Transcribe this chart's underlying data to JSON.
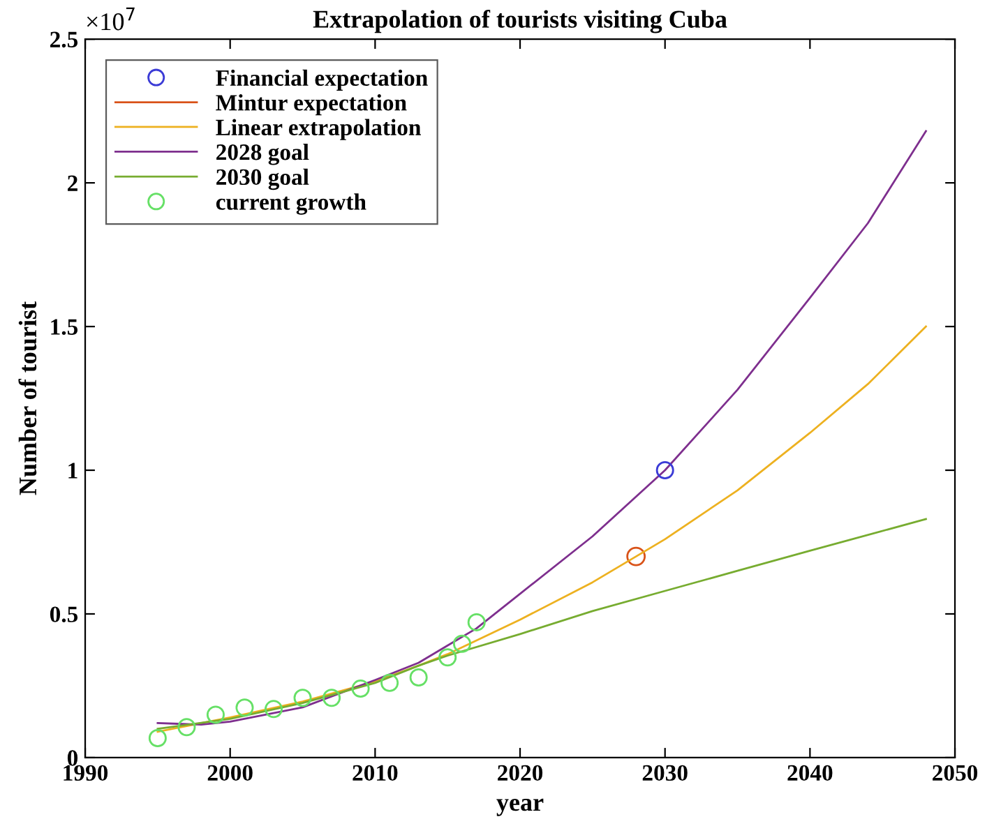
{
  "chart_data": {
    "type": "line",
    "title": "Extrapolation of tourists visiting Cuba",
    "xlabel": "year",
    "ylabel": "Number of tourist",
    "annotations": [
      "×10$^{7}$"
    ],
    "xlim": [
      1990,
      2050
    ],
    "xticks": [
      1990,
      2000,
      2010,
      2020,
      2030,
      2040,
      2050
    ],
    "ylim": [
      0,
      2.5
    ],
    "yticks": [
      0,
      0.5,
      1,
      1.5,
      2,
      2.5
    ],
    "grid": false,
    "legend": "top left",
    "line_style": "solid",
    "series": [
      {
        "name": "Financial expectation",
        "type": "scatter",
        "marker": "circle",
        "color": "#3b3bd6",
        "x": [
          2030
        ],
        "values": [
          1.0
        ]
      },
      {
        "name": "Mintur expectation",
        "marker": "circle",
        "color": "#d95319",
        "x": [
          2028
        ],
        "values": [
          0.7
        ]
      },
      {
        "name": "Linear extrapolation",
        "color": "#edb120",
        "x": [
          1995,
          2000,
          2005,
          2010,
          2013,
          2015,
          2020,
          2025,
          2028,
          2030,
          2035,
          2040,
          2044,
          2048
        ],
        "values": [
          0.09,
          0.14,
          0.195,
          0.265,
          0.32,
          0.36,
          0.48,
          0.61,
          0.7,
          0.76,
          0.93,
          1.13,
          1.3,
          1.5
        ]
      },
      {
        "name": "2028 goal",
        "color": "#7e2f8e",
        "x": [
          1995,
          1998,
          2000,
          2005,
          2010,
          2013,
          2015,
          2017,
          2020,
          2025,
          2030,
          2035,
          2040,
          2044,
          2048
        ],
        "values": [
          0.12,
          0.115,
          0.125,
          0.175,
          0.27,
          0.33,
          0.39,
          0.45,
          0.57,
          0.77,
          1.0,
          1.28,
          1.6,
          1.86,
          2.18
        ]
      },
      {
        "name": "2030 goal",
        "color": "#77ac30",
        "x": [
          1995,
          2000,
          2005,
          2010,
          2013,
          2015,
          2020,
          2025,
          2030,
          2035,
          2040,
          2048
        ],
        "values": [
          0.1,
          0.135,
          0.19,
          0.26,
          0.32,
          0.355,
          0.43,
          0.51,
          0.58,
          0.65,
          0.72,
          0.83
        ]
      },
      {
        "name": "current growth",
        "type": "scatter",
        "marker": "circle",
        "color": "#66e066",
        "x": [
          1995,
          1997,
          1999,
          2001,
          2003,
          2005,
          2007,
          2009,
          2011,
          2013,
          2015,
          2016,
          2017
        ],
        "values": [
          0.068,
          0.106,
          0.149,
          0.174,
          0.169,
          0.208,
          0.208,
          0.24,
          0.26,
          0.279,
          0.349,
          0.396,
          0.471
        ]
      }
    ]
  }
}
